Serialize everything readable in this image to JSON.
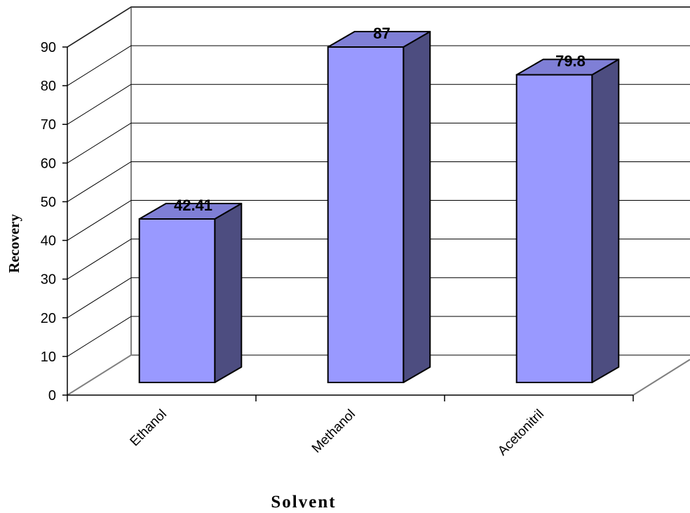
{
  "chart_data": {
    "type": "bar",
    "title": "",
    "xlabel": "Solvent",
    "ylabel": "Recovery",
    "categories": [
      "Ethanol",
      "Methanol",
      "Acetonitril"
    ],
    "series": [
      {
        "values": [
          42.41,
          87,
          79.8
        ],
        "data_labels": [
          "42.41",
          "87",
          "79.8"
        ]
      }
    ],
    "ylim": [
      0,
      90
    ],
    "yticks": [
      0,
      10,
      20,
      30,
      40,
      50,
      60,
      70,
      80,
      90
    ],
    "grid": true,
    "legend": "none",
    "style": "3d-column",
    "colors": {
      "bar_front": "#9999ff",
      "bar_side": "#4d4d80",
      "bar_top": "#7f7fd6",
      "walls": "#ffffff",
      "wall_lines": "#808080",
      "grid": "#000000"
    }
  }
}
